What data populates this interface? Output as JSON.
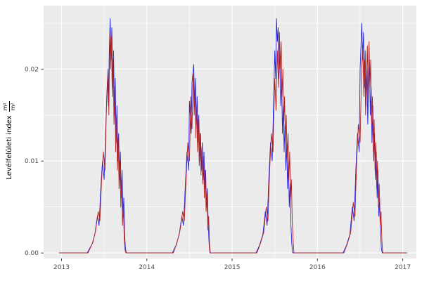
{
  "chart_data": {
    "type": "line",
    "title": "",
    "xlabel": "",
    "ylabel_text": "Levélfelületi index",
    "ylabel_frac_num": "m²",
    "ylabel_frac_den": "m²",
    "xlim": [
      2012.79,
      2017.16
    ],
    "ylim": [
      -0.0006,
      0.0269
    ],
    "x_ticks": [
      {
        "label": "2013",
        "value": 2013
      },
      {
        "label": "2014",
        "value": 2014
      },
      {
        "label": "2015",
        "value": 2015
      },
      {
        "label": "2016",
        "value": 2016
      },
      {
        "label": "2017",
        "value": 2017
      }
    ],
    "y_ticks": [
      {
        "label": "0.00",
        "value": 0
      },
      {
        "label": "0.01",
        "value": 0.01
      },
      {
        "label": "0.02",
        "value": 0.02
      }
    ],
    "x_minor": [
      2013.5,
      2014.5,
      2015.5,
      2016.5
    ],
    "y_minor": [
      0.005,
      0.015,
      0.025
    ],
    "panel_bg": "#EBEBEB",
    "grid_color": "#FFFFFF",
    "legend": "none",
    "series": [
      {
        "name": "series-blue",
        "color": "#2222DD",
        "points": [
          [
            2012.97,
            0
          ],
          [
            2013.3,
            0
          ],
          [
            2013.33,
            0.0005
          ],
          [
            2013.36,
            0.001
          ],
          [
            2013.39,
            0.002
          ],
          [
            2013.42,
            0.004
          ],
          [
            2013.44,
            0.003
          ],
          [
            2013.46,
            0.007
          ],
          [
            2013.48,
            0.01
          ],
          [
            2013.5,
            0.008
          ],
          [
            2013.52,
            0.014
          ],
          [
            2013.54,
            0.019
          ],
          [
            2013.55,
            0.016
          ],
          [
            2013.56,
            0.022
          ],
          [
            2013.57,
            0.0255
          ],
          [
            2013.58,
            0.021
          ],
          [
            2013.59,
            0.0245
          ],
          [
            2013.6,
            0.018
          ],
          [
            2013.61,
            0.022
          ],
          [
            2013.62,
            0.015
          ],
          [
            2013.63,
            0.019
          ],
          [
            2013.64,
            0.012
          ],
          [
            2013.65,
            0.016
          ],
          [
            2013.66,
            0.01
          ],
          [
            2013.67,
            0.013
          ],
          [
            2013.68,
            0.008
          ],
          [
            2013.69,
            0.011
          ],
          [
            2013.7,
            0.006
          ],
          [
            2013.71,
            0.009
          ],
          [
            2013.72,
            0.004
          ],
          [
            2013.73,
            0.006
          ],
          [
            2013.74,
            0.002
          ],
          [
            2013.75,
            0.0005
          ],
          [
            2013.76,
            0
          ],
          [
            2014.3,
            0
          ],
          [
            2014.34,
            0.0008
          ],
          [
            2014.38,
            0.002
          ],
          [
            2014.41,
            0.004
          ],
          [
            2014.43,
            0.003
          ],
          [
            2014.45,
            0.007
          ],
          [
            2014.47,
            0.011
          ],
          [
            2014.49,
            0.009
          ],
          [
            2014.5,
            0.0165
          ],
          [
            2014.52,
            0.013
          ],
          [
            2014.53,
            0.0185
          ],
          [
            2014.55,
            0.0205
          ],
          [
            2014.56,
            0.016
          ],
          [
            2014.57,
            0.019
          ],
          [
            2014.58,
            0.014
          ],
          [
            2014.59,
            0.017
          ],
          [
            2014.6,
            0.012
          ],
          [
            2014.61,
            0.015
          ],
          [
            2014.62,
            0.01
          ],
          [
            2014.63,
            0.013
          ],
          [
            2014.64,
            0.009
          ],
          [
            2014.65,
            0.012
          ],
          [
            2014.66,
            0.008
          ],
          [
            2014.67,
            0.011
          ],
          [
            2014.68,
            0.007
          ],
          [
            2014.69,
            0.009
          ],
          [
            2014.7,
            0.005
          ],
          [
            2014.71,
            0.007
          ],
          [
            2014.72,
            0.003
          ],
          [
            2014.73,
            0.001
          ],
          [
            2014.74,
            0
          ],
          [
            2015.28,
            0
          ],
          [
            2015.32,
            0.0008
          ],
          [
            2015.36,
            0.002
          ],
          [
            2015.39,
            0.0045
          ],
          [
            2015.41,
            0.003
          ],
          [
            2015.43,
            0.008
          ],
          [
            2015.45,
            0.012
          ],
          [
            2015.47,
            0.01
          ],
          [
            2015.49,
            0.018
          ],
          [
            2015.5,
            0.022
          ],
          [
            2015.51,
            0.019
          ],
          [
            2015.52,
            0.0255
          ],
          [
            2015.53,
            0.023
          ],
          [
            2015.54,
            0.0245
          ],
          [
            2015.55,
            0.019
          ],
          [
            2015.56,
            0.022
          ],
          [
            2015.57,
            0.016
          ],
          [
            2015.58,
            0.019
          ],
          [
            2015.59,
            0.013
          ],
          [
            2015.6,
            0.016
          ],
          [
            2015.61,
            0.011
          ],
          [
            2015.62,
            0.014
          ],
          [
            2015.63,
            0.009
          ],
          [
            2015.64,
            0.012
          ],
          [
            2015.65,
            0.007
          ],
          [
            2015.66,
            0.01
          ],
          [
            2015.67,
            0.005
          ],
          [
            2015.68,
            0.0075
          ],
          [
            2015.69,
            0.003
          ],
          [
            2015.7,
            0.001
          ],
          [
            2015.71,
            0
          ],
          [
            2016.3,
            0
          ],
          [
            2016.34,
            0.0008
          ],
          [
            2016.38,
            0.002
          ],
          [
            2016.41,
            0.005
          ],
          [
            2016.43,
            0.0035
          ],
          [
            2016.45,
            0.009
          ],
          [
            2016.47,
            0.013
          ],
          [
            2016.49,
            0.011
          ],
          [
            2016.5,
            0.02
          ],
          [
            2016.52,
            0.025
          ],
          [
            2016.53,
            0.021
          ],
          [
            2016.54,
            0.024
          ],
          [
            2016.55,
            0.018
          ],
          [
            2016.56,
            0.022
          ],
          [
            2016.57,
            0.016
          ],
          [
            2016.58,
            0.02
          ],
          [
            2016.59,
            0.014
          ],
          [
            2016.6,
            0.018
          ],
          [
            2016.61,
            0.021
          ],
          [
            2016.62,
            0.015
          ],
          [
            2016.63,
            0.018
          ],
          [
            2016.64,
            0.012
          ],
          [
            2016.65,
            0.016
          ],
          [
            2016.66,
            0.01
          ],
          [
            2016.67,
            0.013
          ],
          [
            2016.68,
            0.008
          ],
          [
            2016.69,
            0.011
          ],
          [
            2016.7,
            0.006
          ],
          [
            2016.71,
            0.009
          ],
          [
            2016.72,
            0.004
          ],
          [
            2016.73,
            0.006
          ],
          [
            2016.74,
            0.002
          ],
          [
            2016.75,
            0.0005
          ],
          [
            2016.76,
            0
          ],
          [
            2017.05,
            0
          ]
        ]
      },
      {
        "name": "series-dark-red",
        "color": "#B22222",
        "points": [
          [
            2012.97,
            0
          ],
          [
            2013.31,
            0
          ],
          [
            2013.34,
            0.0006
          ],
          [
            2013.37,
            0.0012
          ],
          [
            2013.4,
            0.0025
          ],
          [
            2013.43,
            0.0045
          ],
          [
            2013.45,
            0.0035
          ],
          [
            2013.47,
            0.008
          ],
          [
            2013.49,
            0.011
          ],
          [
            2013.51,
            0.009
          ],
          [
            2013.53,
            0.017
          ],
          [
            2013.545,
            0.02
          ],
          [
            2013.555,
            0.015
          ],
          [
            2013.565,
            0.024
          ],
          [
            2013.575,
            0.02
          ],
          [
            2013.585,
            0.0235
          ],
          [
            2013.595,
            0.017
          ],
          [
            2013.605,
            0.021
          ],
          [
            2013.615,
            0.014
          ],
          [
            2013.625,
            0.018
          ],
          [
            2013.635,
            0.011
          ],
          [
            2013.645,
            0.015
          ],
          [
            2013.655,
            0.009
          ],
          [
            2013.665,
            0.0125
          ],
          [
            2013.675,
            0.007
          ],
          [
            2013.685,
            0.01
          ],
          [
            2013.695,
            0.005
          ],
          [
            2013.705,
            0.008
          ],
          [
            2013.715,
            0.003
          ],
          [
            2013.725,
            0.005
          ],
          [
            2013.735,
            0.0015
          ],
          [
            2013.745,
            0.0003
          ],
          [
            2013.755,
            0
          ],
          [
            2014.31,
            0
          ],
          [
            2014.35,
            0.001
          ],
          [
            2014.39,
            0.0025
          ],
          [
            2014.42,
            0.0045
          ],
          [
            2014.44,
            0.0035
          ],
          [
            2014.46,
            0.008
          ],
          [
            2014.48,
            0.012
          ],
          [
            2014.5,
            0.01
          ],
          [
            2014.515,
            0.017
          ],
          [
            2014.53,
            0.0135
          ],
          [
            2014.545,
            0.0195
          ],
          [
            2014.555,
            0.015
          ],
          [
            2014.565,
            0.018
          ],
          [
            2014.575,
            0.0125
          ],
          [
            2014.585,
            0.016
          ],
          [
            2014.595,
            0.011
          ],
          [
            2014.605,
            0.0145
          ],
          [
            2014.615,
            0.0095
          ],
          [
            2014.625,
            0.013
          ],
          [
            2014.635,
            0.0085
          ],
          [
            2014.645,
            0.0115
          ],
          [
            2014.655,
            0.0075
          ],
          [
            2014.665,
            0.0105
          ],
          [
            2014.675,
            0.006
          ],
          [
            2014.685,
            0.009
          ],
          [
            2014.695,
            0.0045
          ],
          [
            2014.705,
            0.0065
          ],
          [
            2014.715,
            0.0025
          ],
          [
            2014.725,
            0.004
          ],
          [
            2014.735,
            0.001
          ],
          [
            2014.745,
            0
          ],
          [
            2015.29,
            0
          ],
          [
            2015.33,
            0.001
          ],
          [
            2015.37,
            0.0022
          ],
          [
            2015.4,
            0.005
          ],
          [
            2015.42,
            0.0035
          ],
          [
            2015.44,
            0.009
          ],
          [
            2015.46,
            0.013
          ],
          [
            2015.48,
            0.011
          ],
          [
            2015.5,
            0.019
          ],
          [
            2015.515,
            0.0155
          ],
          [
            2015.53,
            0.022
          ],
          [
            2015.545,
            0.018
          ],
          [
            2015.555,
            0.024
          ],
          [
            2015.565,
            0.02
          ],
          [
            2015.575,
            0.023
          ],
          [
            2015.585,
            0.017
          ],
          [
            2015.595,
            0.02
          ],
          [
            2015.605,
            0.014
          ],
          [
            2015.615,
            0.017
          ],
          [
            2015.625,
            0.012
          ],
          [
            2015.635,
            0.015
          ],
          [
            2015.645,
            0.01
          ],
          [
            2015.655,
            0.013
          ],
          [
            2015.665,
            0.008
          ],
          [
            2015.675,
            0.011
          ],
          [
            2015.685,
            0.006
          ],
          [
            2015.695,
            0.008
          ],
          [
            2015.705,
            0.0035
          ],
          [
            2015.715,
            0.0015
          ],
          [
            2015.725,
            0
          ],
          [
            2016.31,
            0
          ],
          [
            2016.35,
            0.001
          ],
          [
            2016.39,
            0.0022
          ],
          [
            2016.42,
            0.0055
          ],
          [
            2016.44,
            0.004
          ],
          [
            2016.46,
            0.01
          ],
          [
            2016.48,
            0.014
          ],
          [
            2016.5,
            0.012
          ],
          [
            2016.515,
            0.019
          ],
          [
            2016.53,
            0.0225
          ],
          [
            2016.545,
            0.017
          ],
          [
            2016.555,
            0.021
          ],
          [
            2016.565,
            0.015
          ],
          [
            2016.575,
            0.019
          ],
          [
            2016.585,
            0.0225
          ],
          [
            2016.595,
            0.016
          ],
          [
            2016.605,
            0.023
          ],
          [
            2016.615,
            0.018
          ],
          [
            2016.625,
            0.021
          ],
          [
            2016.635,
            0.014
          ],
          [
            2016.645,
            0.017
          ],
          [
            2016.655,
            0.011
          ],
          [
            2016.665,
            0.0145
          ],
          [
            2016.675,
            0.009
          ],
          [
            2016.685,
            0.012
          ],
          [
            2016.695,
            0.007
          ],
          [
            2016.705,
            0.01
          ],
          [
            2016.715,
            0.005
          ],
          [
            2016.725,
            0.0075
          ],
          [
            2016.735,
            0.003
          ],
          [
            2016.745,
            0.0045
          ],
          [
            2016.755,
            0.0015
          ],
          [
            2016.765,
            0
          ],
          [
            2017.05,
            0
          ]
        ]
      }
    ]
  }
}
